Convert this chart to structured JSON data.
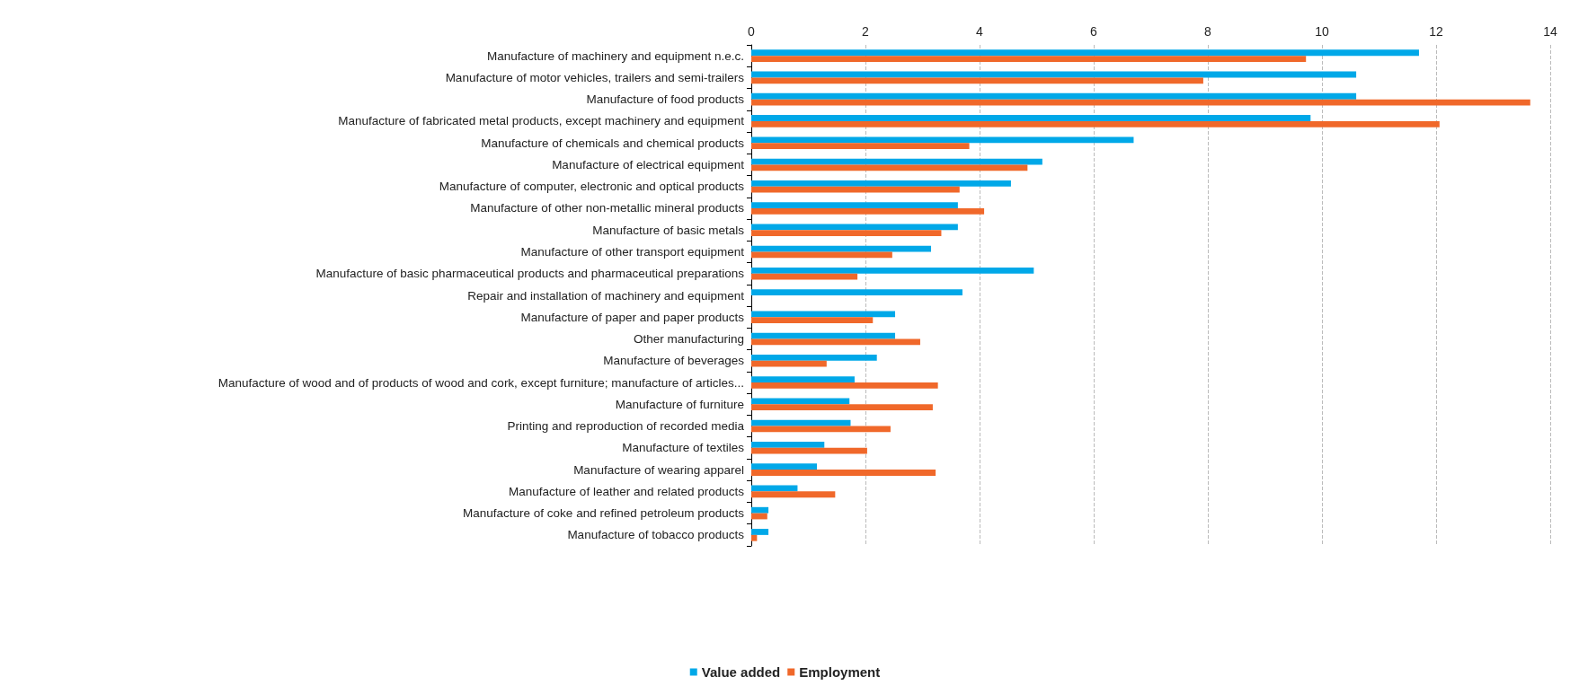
{
  "chart_data": {
    "type": "bar",
    "orientation": "horizontal",
    "categories": [
      "Manufacture of machinery and equipment n.e.c.",
      "Manufacture of motor vehicles, trailers and semi-trailers",
      "Manufacture of food products",
      "Manufacture of fabricated metal products, except machinery and equipment",
      "Manufacture of chemicals and chemical products",
      "Manufacture of electrical equipment",
      "Manufacture of computer, electronic and optical products",
      "Manufacture of other non-metallic mineral products",
      "Manufacture of basic metals",
      "Manufacture of other transport equipment",
      "Manufacture of basic pharmaceutical products and pharmaceutical preparations",
      "Repair and installation of machinery and equipment",
      "Manufacture of paper and paper products",
      "Other manufacturing",
      "Manufacture of beverages",
      "Manufacture of wood and of products of wood and cork, except furniture; manufacture of articles...",
      "Manufacture of furniture",
      "Printing and reproduction of recorded media",
      "Manufacture of textiles",
      "Manufacture of wearing apparel",
      "Manufacture of leather and related products",
      "Manufacture of coke and refined petroleum products",
      "Manufacture of tobacco products"
    ],
    "series": [
      {
        "name": "Value added",
        "color": "#00a8e8",
        "values": [
          11.7,
          10.6,
          10.6,
          9.8,
          6.7,
          5.1,
          4.55,
          3.62,
          3.62,
          3.15,
          4.95,
          3.7,
          2.52,
          2.52,
          2.2,
          1.81,
          1.72,
          1.74,
          1.28,
          1.15,
          0.81,
          0.3,
          0.3
        ]
      },
      {
        "name": "Employment",
        "color": "#f0682a",
        "values": [
          9.72,
          7.92,
          13.65,
          12.06,
          3.82,
          4.84,
          3.65,
          4.08,
          3.33,
          2.47,
          1.86,
          null,
          2.13,
          2.96,
          1.32,
          3.27,
          3.18,
          2.44,
          2.03,
          3.23,
          1.47,
          0.28,
          0.1
        ]
      }
    ],
    "xlim": [
      0,
      14
    ],
    "xticks": [
      0,
      2,
      4,
      6,
      8,
      10,
      12,
      14
    ],
    "grid": "x",
    "legend": "bottom"
  }
}
